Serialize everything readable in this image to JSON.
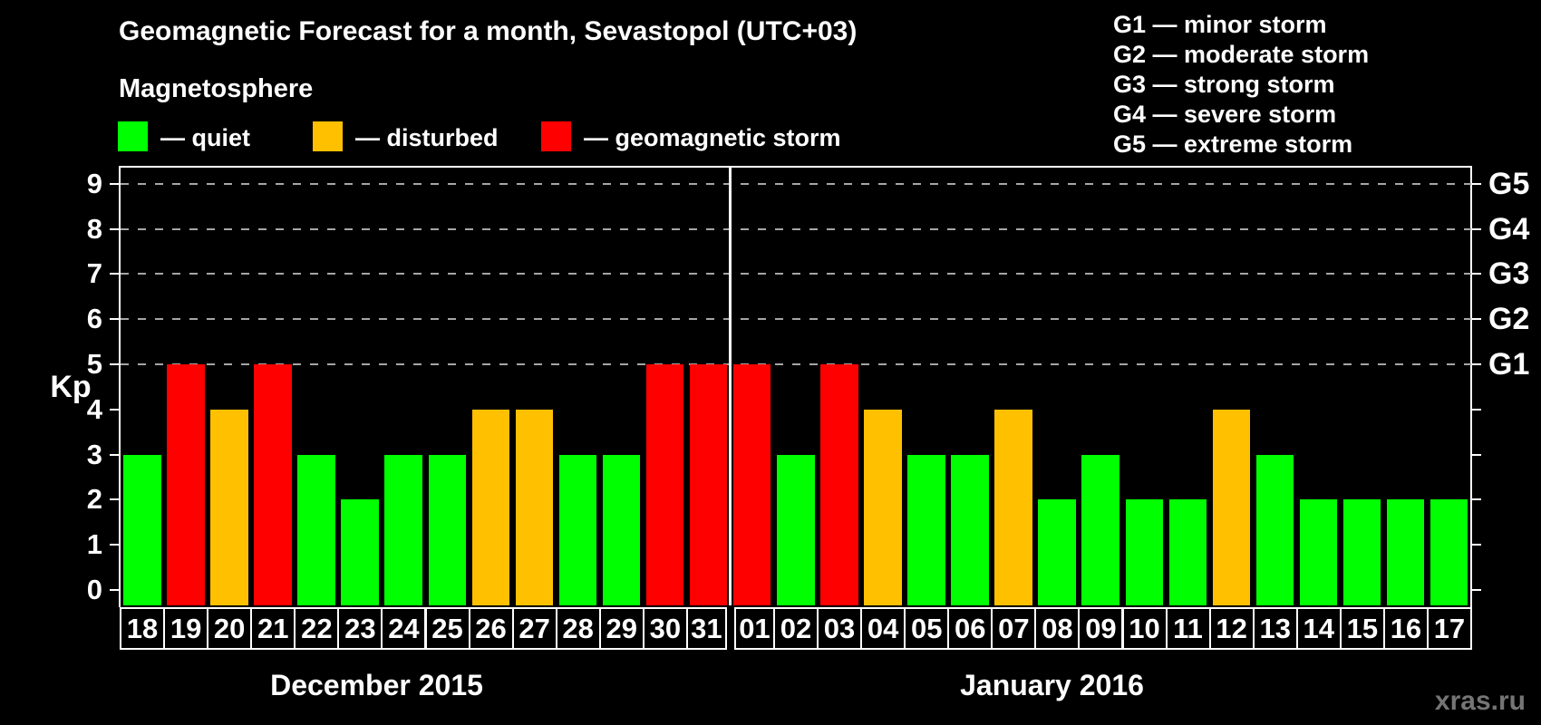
{
  "title": "Geomagnetic Forecast for a month, Sevastopol (UTC+03)",
  "subtitle": "Magnetosphere",
  "legend": {
    "items": [
      {
        "status": "quiet",
        "label": "— quiet"
      },
      {
        "status": "disturbed",
        "label": "— disturbed"
      },
      {
        "status": "storm",
        "label": "— geomagnetic storm"
      }
    ]
  },
  "g_legend": [
    "G1 — minor storm",
    "G2 — moderate storm",
    "G3 — strong storm",
    "G4 — severe storm",
    "G5 — extreme storm"
  ],
  "watermark": "xras.ru",
  "chart_data": {
    "type": "bar",
    "title": "Geomagnetic Forecast for a month, Sevastopol (UTC+03)",
    "ylabel": "Kp",
    "ylim": [
      0,
      9.4
    ],
    "y_ticks": [
      0,
      1,
      2,
      3,
      4,
      5,
      6,
      7,
      8,
      9
    ],
    "gridlines_at": [
      5,
      6,
      7,
      8,
      9
    ],
    "grid_style": "dashed gray horizontal",
    "right_axis_labels": [
      {
        "text": "G1",
        "kp": 5
      },
      {
        "text": "G2",
        "kp": 6
      },
      {
        "text": "G3",
        "kp": 7
      },
      {
        "text": "G4",
        "kp": 8
      },
      {
        "text": "G5",
        "kp": 9
      }
    ],
    "status_colors": {
      "quiet": "#00FF00",
      "disturbed": "#FFC000",
      "storm": "#FF0000"
    },
    "months": [
      {
        "label": "December 2015",
        "start_index": 0,
        "n_days": 14
      },
      {
        "label": "January 2016",
        "start_index": 14,
        "n_days": 17
      }
    ],
    "bars": [
      {
        "day": "18",
        "month": "December 2015",
        "kp": 3,
        "status": "quiet"
      },
      {
        "day": "19",
        "month": "December 2015",
        "kp": 5,
        "status": "storm"
      },
      {
        "day": "20",
        "month": "December 2015",
        "kp": 4,
        "status": "disturbed"
      },
      {
        "day": "21",
        "month": "December 2015",
        "kp": 5,
        "status": "storm"
      },
      {
        "day": "22",
        "month": "December 2015",
        "kp": 3,
        "status": "quiet"
      },
      {
        "day": "23",
        "month": "December 2015",
        "kp": 2,
        "status": "quiet"
      },
      {
        "day": "24",
        "month": "December 2015",
        "kp": 3,
        "status": "quiet"
      },
      {
        "day": "25",
        "month": "December 2015",
        "kp": 3,
        "status": "quiet"
      },
      {
        "day": "26",
        "month": "December 2015",
        "kp": 4,
        "status": "disturbed"
      },
      {
        "day": "27",
        "month": "December 2015",
        "kp": 4,
        "status": "disturbed"
      },
      {
        "day": "28",
        "month": "December 2015",
        "kp": 3,
        "status": "quiet"
      },
      {
        "day": "29",
        "month": "December 2015",
        "kp": 3,
        "status": "quiet"
      },
      {
        "day": "30",
        "month": "December 2015",
        "kp": 5,
        "status": "storm"
      },
      {
        "day": "31",
        "month": "December 2015",
        "kp": 5,
        "status": "storm"
      },
      {
        "day": "01",
        "month": "January 2016",
        "kp": 5,
        "status": "storm"
      },
      {
        "day": "02",
        "month": "January 2016",
        "kp": 3,
        "status": "quiet"
      },
      {
        "day": "03",
        "month": "January 2016",
        "kp": 5,
        "status": "storm"
      },
      {
        "day": "04",
        "month": "January 2016",
        "kp": 4,
        "status": "disturbed"
      },
      {
        "day": "05",
        "month": "January 2016",
        "kp": 3,
        "status": "quiet"
      },
      {
        "day": "06",
        "month": "January 2016",
        "kp": 3,
        "status": "quiet"
      },
      {
        "day": "07",
        "month": "January 2016",
        "kp": 4,
        "status": "disturbed"
      },
      {
        "day": "08",
        "month": "January 2016",
        "kp": 2,
        "status": "quiet"
      },
      {
        "day": "09",
        "month": "January 2016",
        "kp": 3,
        "status": "quiet"
      },
      {
        "day": "10",
        "month": "January 2016",
        "kp": 2,
        "status": "quiet"
      },
      {
        "day": "11",
        "month": "January 2016",
        "kp": 2,
        "status": "quiet"
      },
      {
        "day": "12",
        "month": "January 2016",
        "kp": 4,
        "status": "disturbed"
      },
      {
        "day": "13",
        "month": "January 2016",
        "kp": 3,
        "status": "quiet"
      },
      {
        "day": "14",
        "month": "January 2016",
        "kp": 2,
        "status": "quiet"
      },
      {
        "day": "15",
        "month": "January 2016",
        "kp": 2,
        "status": "quiet"
      },
      {
        "day": "16",
        "month": "January 2016",
        "kp": 2,
        "status": "quiet"
      },
      {
        "day": "17",
        "month": "January 2016",
        "kp": 2,
        "status": "quiet"
      }
    ]
  }
}
